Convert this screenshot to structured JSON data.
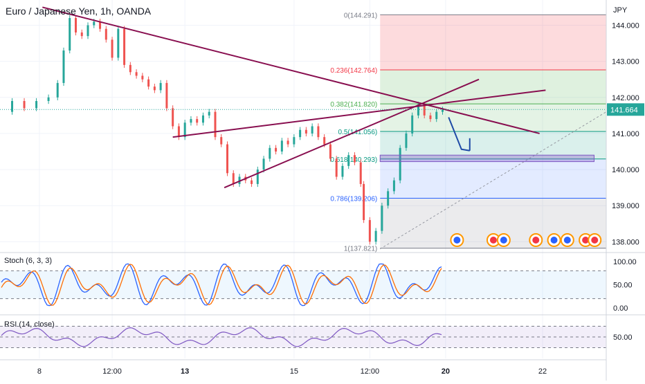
{
  "chart_data": {
    "type": "line",
    "title": "Euro / Japanese Yen, 1h, OANDA",
    "currency": "JPY",
    "price_axis": {
      "ylim": [
        137.7,
        144.7
      ],
      "ticks": [
        "144.000",
        "143.000",
        "142.000",
        "141.000",
        "140.000",
        "139.000",
        "138.000"
      ],
      "tick_values": [
        144,
        143,
        142,
        141,
        140,
        139,
        138
      ]
    },
    "x_ticks": [
      {
        "label": "8",
        "t": 0.065
      },
      {
        "label": "12:00",
        "t": 0.185
      },
      {
        "label": "13",
        "t": 0.305
      },
      {
        "label": "15",
        "t": 0.485
      },
      {
        "label": "12:00",
        "t": 0.61
      },
      {
        "label": "20",
        "t": 0.735
      },
      {
        "label": "22",
        "t": 0.895
      }
    ],
    "last_price": "141.664",
    "price_series": [
      {
        "t": 0.0,
        "v": 141.6
      },
      {
        "t": 0.02,
        "v": 141.9
      },
      {
        "t": 0.04,
        "v": 141.7
      },
      {
        "t": 0.06,
        "v": 141.9
      },
      {
        "t": 0.08,
        "v": 142.0
      },
      {
        "t": 0.095,
        "v": 142.4
      },
      {
        "t": 0.105,
        "v": 143.3
      },
      {
        "t": 0.115,
        "v": 144.2
      },
      {
        "t": 0.125,
        "v": 143.8
      },
      {
        "t": 0.135,
        "v": 143.7
      },
      {
        "t": 0.145,
        "v": 144.0
      },
      {
        "t": 0.155,
        "v": 144.1
      },
      {
        "t": 0.165,
        "v": 143.9
      },
      {
        "t": 0.175,
        "v": 143.6
      },
      {
        "t": 0.185,
        "v": 143.1
      },
      {
        "t": 0.195,
        "v": 143.9
      },
      {
        "t": 0.205,
        "v": 142.9
      },
      {
        "t": 0.215,
        "v": 142.7
      },
      {
        "t": 0.225,
        "v": 142.6
      },
      {
        "t": 0.235,
        "v": 142.5
      },
      {
        "t": 0.245,
        "v": 142.3
      },
      {
        "t": 0.255,
        "v": 142.2
      },
      {
        "t": 0.265,
        "v": 142.4
      },
      {
        "t": 0.275,
        "v": 141.7
      },
      {
        "t": 0.285,
        "v": 141.2
      },
      {
        "t": 0.295,
        "v": 140.9
      },
      {
        "t": 0.305,
        "v": 141.3
      },
      {
        "t": 0.315,
        "v": 141.4
      },
      {
        "t": 0.325,
        "v": 141.3
      },
      {
        "t": 0.335,
        "v": 141.5
      },
      {
        "t": 0.345,
        "v": 141.6
      },
      {
        "t": 0.355,
        "v": 140.9
      },
      {
        "t": 0.365,
        "v": 140.7
      },
      {
        "t": 0.375,
        "v": 139.9
      },
      {
        "t": 0.385,
        "v": 139.6
      },
      {
        "t": 0.395,
        "v": 139.8
      },
      {
        "t": 0.405,
        "v": 139.7
      },
      {
        "t": 0.415,
        "v": 139.6
      },
      {
        "t": 0.425,
        "v": 140.0
      },
      {
        "t": 0.435,
        "v": 140.3
      },
      {
        "t": 0.445,
        "v": 140.6
      },
      {
        "t": 0.455,
        "v": 140.5
      },
      {
        "t": 0.465,
        "v": 140.8
      },
      {
        "t": 0.475,
        "v": 140.7
      },
      {
        "t": 0.485,
        "v": 140.9
      },
      {
        "t": 0.495,
        "v": 141.1
      },
      {
        "t": 0.505,
        "v": 141.0
      },
      {
        "t": 0.515,
        "v": 141.2
      },
      {
        "t": 0.525,
        "v": 140.9
      },
      {
        "t": 0.535,
        "v": 140.7
      },
      {
        "t": 0.545,
        "v": 140.3
      },
      {
        "t": 0.555,
        "v": 139.8
      },
      {
        "t": 0.565,
        "v": 140.1
      },
      {
        "t": 0.575,
        "v": 140.4
      },
      {
        "t": 0.585,
        "v": 140.2
      },
      {
        "t": 0.595,
        "v": 139.6
      },
      {
        "t": 0.6,
        "v": 138.6
      },
      {
        "t": 0.61,
        "v": 138.0
      },
      {
        "t": 0.62,
        "v": 138.3
      },
      {
        "t": 0.63,
        "v": 139.0
      },
      {
        "t": 0.64,
        "v": 139.4
      },
      {
        "t": 0.65,
        "v": 139.7
      },
      {
        "t": 0.66,
        "v": 140.6
      },
      {
        "t": 0.67,
        "v": 141.0
      },
      {
        "t": 0.68,
        "v": 141.5
      },
      {
        "t": 0.69,
        "v": 141.8
      },
      {
        "t": 0.7,
        "v": 141.5
      },
      {
        "t": 0.71,
        "v": 141.4
      },
      {
        "t": 0.72,
        "v": 141.6
      },
      {
        "t": 0.73,
        "v": 141.664
      }
    ],
    "fib_levels": [
      {
        "label": "0(144.291)",
        "value": 144.291,
        "color": "#787b86"
      },
      {
        "label": "0.236(142.764)",
        "value": 142.764,
        "color": "#f23645"
      },
      {
        "label": "0.382(141.820)",
        "value": 141.82,
        "color": "#4caf50"
      },
      {
        "label": "0.5(141.056)",
        "value": 141.056,
        "color": "#089981"
      },
      {
        "label": "0.618(140.293)",
        "value": 140.293,
        "color": "#089981"
      },
      {
        "label": "0.786(139.206)",
        "value": 139.206,
        "color": "#2962ff"
      },
      {
        "label": "1(137.821)",
        "value": 137.821,
        "color": "#787b86"
      }
    ],
    "trendlines": [
      {
        "t1": 0.07,
        "v1": 144.5,
        "t2": 0.89,
        "v2": 141.0
      },
      {
        "t1": 0.285,
        "v1": 140.9,
        "t2": 0.9,
        "v2": 142.2
      },
      {
        "t1": 0.37,
        "v1": 139.5,
        "t2": 0.79,
        "v2": 142.5
      }
    ],
    "indicators": [
      {
        "name": "Stoch (6, 3, 3)",
        "ticks": [
          "100.00",
          "50.00",
          "0.00"
        ],
        "tick_values": [
          100,
          50,
          0
        ],
        "band": [
          20,
          80
        ],
        "series_colors": [
          "#2962ff",
          "#ff6d00"
        ]
      },
      {
        "name": "RSI (14, close)",
        "ticks": [
          "50.00"
        ],
        "tick_values": [
          50
        ],
        "band": [
          30,
          70
        ],
        "series_colors": [
          "#7e57c2"
        ]
      }
    ]
  },
  "colors": {
    "bull": "#26a69a",
    "bear": "#ef5350",
    "trend": "#880e4f",
    "arrow": "#1e4aa6"
  }
}
